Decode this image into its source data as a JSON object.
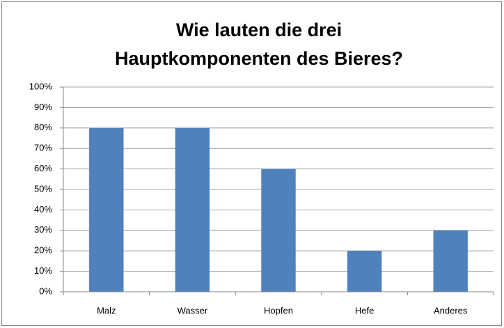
{
  "chart_data": {
    "type": "bar",
    "title": [
      "Wie lauten die drei",
      "Hauptkomponenten des Bieres?"
    ],
    "categories": [
      "Malz",
      "Wasser",
      "Hopfen",
      "Hefe",
      "Anderes"
    ],
    "values": [
      80,
      80,
      60,
      20,
      30
    ],
    "color": "#4f81bd",
    "ylim": [
      0,
      100
    ],
    "yticks": [
      {
        "value": 0,
        "label": "0%"
      },
      {
        "value": 10,
        "label": "10%"
      },
      {
        "value": 20,
        "label": "20%"
      },
      {
        "value": 30,
        "label": "30%"
      },
      {
        "value": 40,
        "label": "40%"
      },
      {
        "value": 50,
        "label": "50%"
      },
      {
        "value": 60,
        "label": "60%"
      },
      {
        "value": 70,
        "label": "70%"
      },
      {
        "value": 80,
        "label": "80%"
      },
      {
        "value": 90,
        "label": "90%"
      },
      {
        "value": 100,
        "label": "100%"
      }
    ],
    "grid": true
  }
}
